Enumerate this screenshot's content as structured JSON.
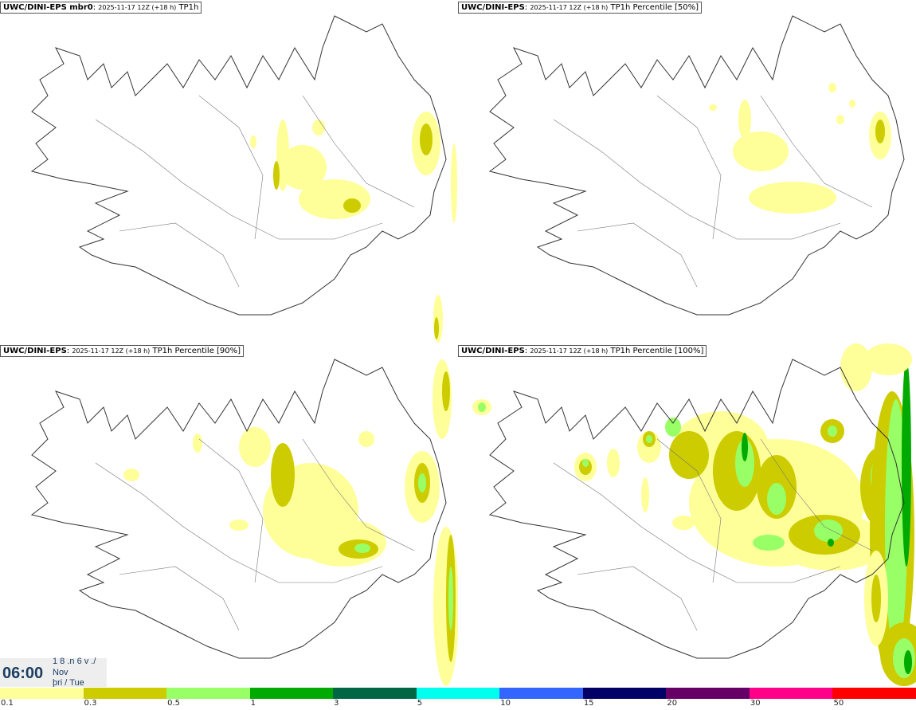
{
  "panels": [
    {
      "model": "UWC/DINI-EPS mbr0",
      "run": "2025-11-17 12Z (+18 h)",
      "field": "TP1h"
    },
    {
      "model": "UWC/DINI-EPS",
      "run": "2025-11-17 12Z (+18 h)",
      "field": "TP1h Percentile [50%]"
    },
    {
      "model": "UWC/DINI-EPS",
      "run": "2025-11-17 12Z (+18 h)",
      "field": "TP1h Percentile [90%]"
    },
    {
      "model": "UWC/DINI-EPS",
      "run": "2025-11-17 12Z (+18 h)",
      "field": "TP1h Percentile [100%]"
    }
  ],
  "clock": {
    "time": "06:00",
    "date_line": "1 8 .n 6 v ./",
    "month": "Nov",
    "weekday": "þri / Tue"
  },
  "legend": {
    "colors": [
      "#ffff99",
      "#cccc00",
      "#99ff66",
      "#00aa00",
      "#006644",
      "#00ffee",
      "#3366ff",
      "#000066",
      "#660066",
      "#ff0088",
      "#ff0000"
    ],
    "ticks": [
      "0.1",
      "0.3",
      "0.5",
      "1",
      "3",
      "5",
      "10",
      "15",
      "20",
      "30",
      "50"
    ]
  }
}
